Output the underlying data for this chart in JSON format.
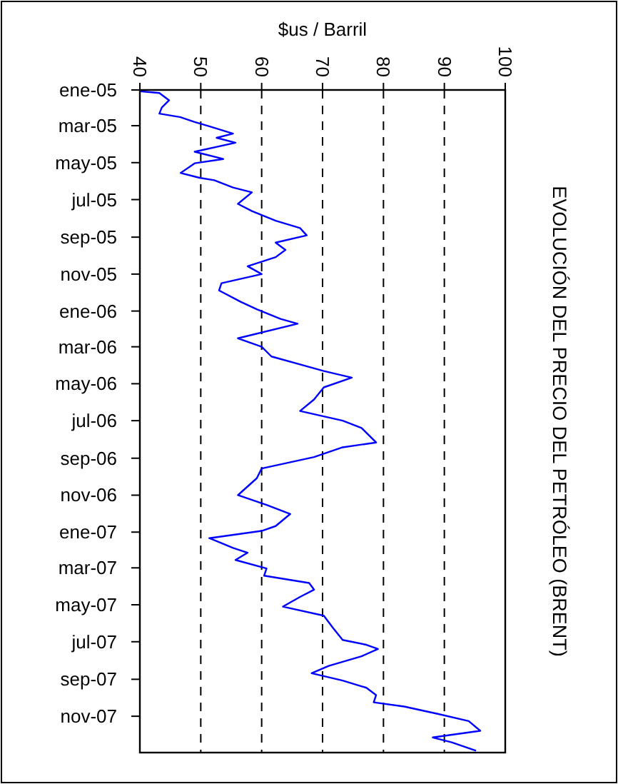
{
  "chart_data": {
    "type": "line",
    "orientation": "horizontal",
    "title": "EVOLUCIÓN DEL PRECIO DEL PETRÓLEO (BRENT)",
    "xlabel": "$us / Barril",
    "ylim": [
      "2007-12-31",
      "2005-01-01"
    ],
    "yticks": [
      {
        "value": "2005-01-01",
        "label": "ene-05"
      },
      {
        "value": "2005-03-01",
        "label": "mar-05"
      },
      {
        "value": "2005-05-01",
        "label": "may-05"
      },
      {
        "value": "2005-07-01",
        "label": "jul-05"
      },
      {
        "value": "2005-09-01",
        "label": "sep-05"
      },
      {
        "value": "2005-11-01",
        "label": "nov-05"
      },
      {
        "value": "2006-01-01",
        "label": "ene-06"
      },
      {
        "value": "2006-03-01",
        "label": "mar-06"
      },
      {
        "value": "2006-05-01",
        "label": "may-06"
      },
      {
        "value": "2006-07-01",
        "label": "jul-06"
      },
      {
        "value": "2006-09-01",
        "label": "sep-06"
      },
      {
        "value": "2006-11-01",
        "label": "nov-06"
      },
      {
        "value": "2007-01-01",
        "label": "ene-07"
      },
      {
        "value": "2007-03-01",
        "label": "mar-07"
      },
      {
        "value": "2007-05-01",
        "label": "may-07"
      },
      {
        "value": "2007-07-01",
        "label": "jul-07"
      },
      {
        "value": "2007-09-01",
        "label": "sep-07"
      },
      {
        "value": "2007-11-01",
        "label": "nov-07"
      }
    ],
    "xlim": [
      40,
      100
    ],
    "xticks": [
      40,
      50,
      60,
      70,
      80,
      90,
      100
    ],
    "grid": "x",
    "line_style": "solid",
    "x": [
      "2005-01-03",
      "2005-01-06",
      "2005-01-18",
      "2005-01-30",
      "2005-02-09",
      "2005-02-15",
      "2005-02-23",
      "2005-03-02",
      "2005-03-14",
      "2005-03-21",
      "2005-03-29",
      "2005-04-13",
      "2005-04-25",
      "2005-05-02",
      "2005-05-18",
      "2005-05-26",
      "2005-05-30",
      "2005-06-11",
      "2005-06-19",
      "2005-07-08",
      "2005-07-20",
      "2005-08-05",
      "2005-08-17",
      "2005-08-29",
      "2005-09-10",
      "2005-09-22",
      "2005-10-04",
      "2005-10-19",
      "2005-11-01",
      "2005-11-16",
      "2005-11-28",
      "2005-12-17",
      "2005-12-29",
      "2006-01-14",
      "2006-01-22",
      "2006-02-15",
      "2006-03-01",
      "2006-03-17",
      "2006-04-10",
      "2006-04-21",
      "2006-05-07",
      "2006-05-27",
      "2006-06-15",
      "2006-07-01",
      "2006-07-13",
      "2006-08-06",
      "2006-08-14",
      "2006-08-30",
      "2006-09-18",
      "2006-10-04",
      "2006-11-01",
      "2006-11-17",
      "2006-12-02",
      "2006-12-22",
      "2006-12-30",
      "2007-01-11",
      "2007-01-27",
      "2007-02-04",
      "2007-02-16",
      "2007-03-02",
      "2007-03-14",
      "2007-03-26",
      "2007-04-06",
      "2007-04-18",
      "2007-05-04",
      "2007-05-19",
      "2007-06-08",
      "2007-06-28",
      "2007-07-06",
      "2007-07-13",
      "2007-07-25",
      "2007-08-10",
      "2007-08-22",
      "2007-09-03",
      "2007-09-15",
      "2007-09-27",
      "2007-10-09",
      "2007-10-16",
      "2007-10-28",
      "2007-11-09",
      "2007-11-25",
      "2007-12-06",
      "2007-12-14",
      "2007-12-28"
    ],
    "series": [
      {
        "color": "#0000ff",
        "values": [
          40,
          43.2,
          44.8,
          43.6,
          43.2,
          46.7,
          49,
          51.4,
          55.3,
          52.6,
          55.7,
          49,
          53.7,
          49,
          46.7,
          49.8,
          52.2,
          55.3,
          58.4,
          56.1,
          58.4,
          62.3,
          66.3,
          67.4,
          62.3,
          63.9,
          62.3,
          57.7,
          60,
          53.4,
          53,
          56.6,
          59.2,
          63.1,
          65.9,
          56.1,
          60,
          61.6,
          70.2,
          74.8,
          70.2,
          68.6,
          66.3,
          73.3,
          76.4,
          78.8,
          73.3,
          68.6,
          60,
          59.2,
          56.1,
          60.8,
          64.7,
          62.3,
          60,
          51.4,
          55.3,
          57.7,
          55.7,
          60.8,
          60.4,
          67.8,
          68.6,
          66.3,
          63.5,
          70.2,
          71.7,
          73.3,
          77.2,
          79.1,
          76.4,
          71,
          68.2,
          73.3,
          77.2,
          78.8,
          78.4,
          83.4,
          88.9,
          94,
          95.9,
          88.1,
          91.2,
          95.2
        ]
      }
    ]
  }
}
